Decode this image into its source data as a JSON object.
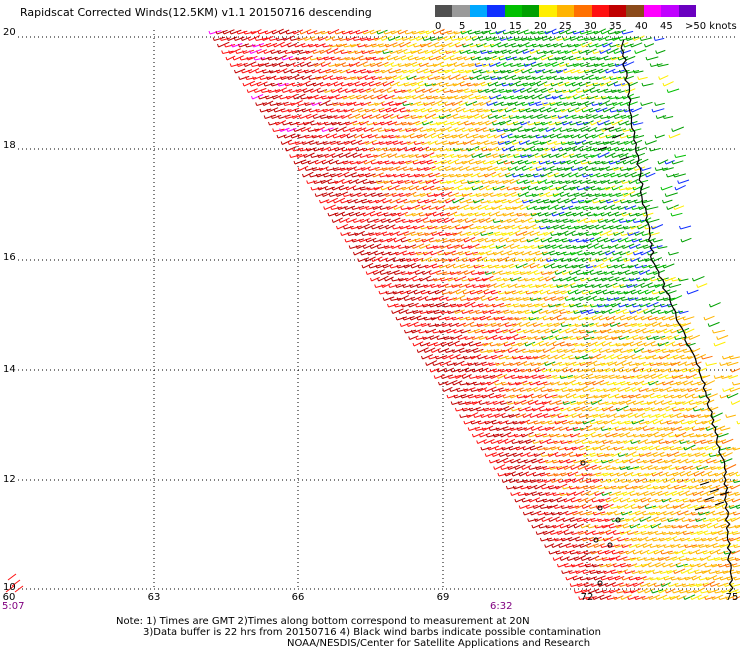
{
  "title": "Rapidscat Corrected Winds(12.5KM) v1.1 20150716 descending",
  "legend": {
    "labels": [
      "0",
      "5",
      "10",
      "15",
      "20",
      "25",
      "30",
      "35",
      "40",
      "45",
      ">50 knots"
    ],
    "colors": [
      "#505050",
      "#9a9a9a",
      "#00a8ff",
      "#1030ff",
      "#00c000",
      "#00a000",
      "#ffee00",
      "#ffb400",
      "#ff7000",
      "#ff1010",
      "#c00000",
      "#8b4a1a",
      "#ff00ff",
      "#c000ff",
      "#6a00c0"
    ]
  },
  "axes": {
    "lat_labels": [
      "20",
      "18",
      "16",
      "14",
      "12",
      "10"
    ],
    "lon_labels": [
      "60",
      "63",
      "66",
      "69",
      "72",
      "75"
    ]
  },
  "times": {
    "start": "5:07",
    "mid": "6:32"
  },
  "notes": {
    "line1": "Note: 1) Times are GMT 2)Times along bottom correspond to measurement at 20N",
    "line2": "3)Data buffer is 22 hrs from 20150716 4) Black wind barbs indicate possible contamination",
    "line3": "NOAA/NESDIS/Center for Satellite Applications and Research"
  }
}
